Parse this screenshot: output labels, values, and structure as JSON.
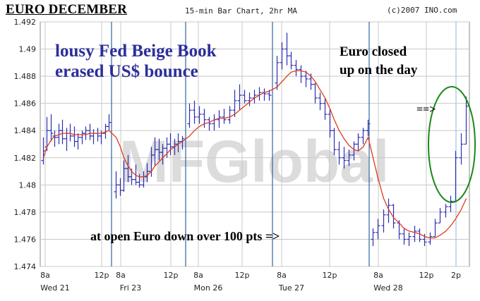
{
  "header": {
    "title": "EURO DECEMBER",
    "subtitle": "15-min Bar Chart, 2hr MA",
    "copyright": "(c)2007 INO.com"
  },
  "annotations": {
    "beige_book": [
      "lousy Fed Beige Book",
      "erased US$ bounce"
    ],
    "closed_up": [
      "Euro closed",
      "up on the day"
    ],
    "open_down": "at open Euro down over 100 pts =>",
    "arrow": "==>"
  },
  "watermark": "MFGlobal",
  "colors": {
    "bars": "#2d2fb0",
    "moving_average": "#e03a1a",
    "grid": "#c8c8c8",
    "day_separator": "#2f64a0",
    "circle": "#1a8a1a",
    "annotation_blue": "#2b2f9a"
  },
  "chart_data": {
    "type": "bar",
    "title": "EURO DECEMBER",
    "subtitle": "15-min Bar Chart, 2hr MA",
    "ylim": [
      1.474,
      1.492
    ],
    "y_ticks": [
      "1.474",
      "1.476",
      "1.478",
      "1.48",
      "1.482",
      "1.484",
      "1.486",
      "1.488",
      "1.49",
      "1.492"
    ],
    "x_ticks": [
      {
        "label": "8a",
        "day": "Wed 21"
      },
      {
        "label": "12p",
        "day": ""
      },
      {
        "label": "8a",
        "day": "Fri 23"
      },
      {
        "label": "12p",
        "day": ""
      },
      {
        "label": "8a",
        "day": "Mon 26"
      },
      {
        "label": "12p",
        "day": ""
      },
      {
        "label": "8a",
        "day": "Tue 27"
      },
      {
        "label": "12p",
        "day": ""
      },
      {
        "label": "8a",
        "day": "Wed 28"
      },
      {
        "label": "12p",
        "day": ""
      },
      {
        "label": "2p",
        "day": ""
      }
    ],
    "sessions": [
      {
        "day": "Wed 21",
        "bars": [
          [
            1.4835,
            1.4815,
            1.4818,
            1.4825
          ],
          [
            1.485,
            1.4825,
            1.4828,
            1.484
          ],
          [
            1.4852,
            1.4832,
            1.484,
            1.4838
          ],
          [
            1.484,
            1.4828,
            1.4836,
            1.4835
          ],
          [
            1.4845,
            1.483,
            1.4835,
            1.484
          ],
          [
            1.4848,
            1.483,
            1.484,
            1.4834
          ],
          [
            1.4842,
            1.4825,
            1.4834,
            1.4838
          ],
          [
            1.4845,
            1.4832,
            1.4838,
            1.4836
          ],
          [
            1.4843,
            1.4828,
            1.4836,
            1.4832
          ],
          [
            1.4838,
            1.4826,
            1.4832,
            1.4835
          ],
          [
            1.484,
            1.483,
            1.4835,
            1.4838
          ],
          [
            1.4843,
            1.4833,
            1.4838,
            1.484
          ],
          [
            1.4845,
            1.4833,
            1.484,
            1.4836
          ],
          [
            1.4841,
            1.483,
            1.4836,
            1.4838
          ],
          [
            1.4842,
            1.4832,
            1.4838,
            1.4836
          ],
          [
            1.484,
            1.483,
            1.4836,
            1.4838
          ],
          [
            1.4845,
            1.4834,
            1.4838,
            1.4843
          ],
          [
            1.4852,
            1.484,
            1.4843,
            1.4846
          ]
        ]
      },
      {
        "day": "Fri 23",
        "bars": [
          [
            1.481,
            1.479,
            1.4795,
            1.48
          ],
          [
            1.4805,
            1.4792,
            1.48,
            1.4796
          ],
          [
            1.4818,
            1.4795,
            1.4796,
            1.4812
          ],
          [
            1.4822,
            1.4802,
            1.4812,
            1.4806
          ],
          [
            1.4812,
            1.48,
            1.4806,
            1.4804
          ],
          [
            1.4815,
            1.48,
            1.4804,
            1.4802
          ],
          [
            1.4808,
            1.4798,
            1.4802,
            1.48
          ],
          [
            1.481,
            1.4798,
            1.48,
            1.4806
          ],
          [
            1.4816,
            1.4802,
            1.4806,
            1.481
          ],
          [
            1.4828,
            1.4806,
            1.481,
            1.4822
          ],
          [
            1.4835,
            1.4814,
            1.4822,
            1.4826
          ],
          [
            1.4834,
            1.4818,
            1.4826,
            1.4824
          ],
          [
            1.483,
            1.4815,
            1.4824,
            1.4827
          ],
          [
            1.4835,
            1.482,
            1.4827,
            1.483
          ],
          [
            1.4838,
            1.4822,
            1.483,
            1.4828
          ],
          [
            1.4834,
            1.4822,
            1.4828,
            1.483
          ],
          [
            1.4838,
            1.4824,
            1.483,
            1.4832
          ],
          [
            1.4836,
            1.4826,
            1.4832,
            1.4834
          ]
        ]
      },
      {
        "day": "Mon 26",
        "bars": [
          [
            1.486,
            1.4842,
            1.4845,
            1.4855
          ],
          [
            1.4862,
            1.4845,
            1.4855,
            1.485
          ],
          [
            1.4858,
            1.4845,
            1.485,
            1.4852
          ],
          [
            1.4856,
            1.4842,
            1.4852,
            1.4848
          ],
          [
            1.485,
            1.484,
            1.4848,
            1.4845
          ],
          [
            1.4852,
            1.484,
            1.4845,
            1.4848
          ],
          [
            1.4855,
            1.4842,
            1.4848,
            1.485
          ],
          [
            1.4856,
            1.4845,
            1.485,
            1.4848
          ],
          [
            1.4858,
            1.4845,
            1.4848,
            1.4855
          ],
          [
            1.487,
            1.485,
            1.4855,
            1.4862
          ],
          [
            1.4874,
            1.4855,
            1.4862,
            1.4866
          ],
          [
            1.487,
            1.486,
            1.4866,
            1.4862
          ],
          [
            1.4868,
            1.4858,
            1.4862,
            1.4864
          ],
          [
            1.487,
            1.486,
            1.4864,
            1.4866
          ],
          [
            1.4872,
            1.4862,
            1.4866,
            1.4868
          ],
          [
            1.4871,
            1.4862,
            1.4868,
            1.4867
          ],
          [
            1.487,
            1.4862,
            1.4867,
            1.4866
          ]
        ]
      },
      {
        "day": "Tue 27",
        "bars": [
          [
            1.4895,
            1.487,
            1.4875,
            1.489
          ],
          [
            1.4905,
            1.4885,
            1.489,
            1.49
          ],
          [
            1.4912,
            1.4888,
            1.49,
            1.4895
          ],
          [
            1.4898,
            1.4885,
            1.4895,
            1.4888
          ],
          [
            1.4892,
            1.488,
            1.4888,
            1.4885
          ],
          [
            1.4888,
            1.4875,
            1.4885,
            1.488
          ],
          [
            1.4884,
            1.4872,
            1.488,
            1.4878
          ],
          [
            1.4882,
            1.487,
            1.4878,
            1.4874
          ],
          [
            1.4875,
            1.486,
            1.4874,
            1.4864
          ],
          [
            1.4868,
            1.4855,
            1.4864,
            1.486
          ],
          [
            1.4864,
            1.4848,
            1.486,
            1.4852
          ],
          [
            1.4856,
            1.4835,
            1.4852,
            1.484
          ],
          [
            1.4842,
            1.4822,
            1.484,
            1.4826
          ],
          [
            1.4832,
            1.4815,
            1.4826,
            1.482
          ],
          [
            1.4828,
            1.4812,
            1.482,
            1.4818
          ],
          [
            1.4826,
            1.4814,
            1.4818,
            1.4822
          ],
          [
            1.4832,
            1.4818,
            1.4822,
            1.483
          ],
          [
            1.4838,
            1.4825,
            1.483,
            1.4835
          ],
          [
            1.4842,
            1.483,
            1.4835,
            1.484
          ],
          [
            1.4848,
            1.4836,
            1.484,
            1.4845
          ]
        ]
      },
      {
        "day": "Wed 28",
        "bars": [
          [
            1.4768,
            1.4755,
            1.476,
            1.4765
          ],
          [
            1.4775,
            1.476,
            1.4765,
            1.477
          ],
          [
            1.4782,
            1.4765,
            1.477,
            1.4778
          ],
          [
            1.479,
            1.4772,
            1.4778,
            1.4785
          ],
          [
            1.4786,
            1.4768,
            1.4785,
            1.4772
          ],
          [
            1.4774,
            1.476,
            1.4772,
            1.4764
          ],
          [
            1.4768,
            1.4756,
            1.4764,
            1.476
          ],
          [
            1.4765,
            1.4755,
            1.476,
            1.4762
          ],
          [
            1.477,
            1.4758,
            1.4762,
            1.4766
          ],
          [
            1.4768,
            1.4758,
            1.4766,
            1.476
          ],
          [
            1.4764,
            1.4755,
            1.476,
            1.4758
          ],
          [
            1.4765,
            1.4756,
            1.4758,
            1.4762
          ],
          [
            1.4775,
            1.4762,
            1.4762,
            1.4772
          ],
          [
            1.4783,
            1.4772,
            1.4772,
            1.478
          ],
          [
            1.4786,
            1.4776,
            1.478,
            1.4784
          ],
          [
            1.4792,
            1.478,
            1.4784,
            1.4788
          ],
          [
            1.4825,
            1.4788,
            1.4788,
            1.482
          ],
          [
            1.4838,
            1.4815,
            1.482,
            1.483
          ],
          [
            1.4865,
            1.483,
            1.483,
            1.4858
          ]
        ]
      }
    ],
    "moving_average": [
      1.482,
      1.4828,
      1.4833,
      1.4836,
      1.4837,
      1.4838,
      1.4838,
      1.4838,
      1.4837,
      1.4837,
      1.4837,
      1.4837,
      1.4838,
      1.4838,
      1.4838,
      1.4838,
      1.4839,
      1.484,
      1.4835,
      1.4828,
      1.482,
      1.4814,
      1.481,
      1.4807,
      1.4806,
      1.4806,
      1.4807,
      1.481,
      1.4814,
      1.4817,
      1.482,
      1.4823,
      1.4826,
      1.4828,
      1.483,
      1.4832,
      1.4836,
      1.484,
      1.4843,
      1.4845,
      1.4846,
      1.4848,
      1.4849,
      1.4849,
      1.485,
      1.4852,
      1.4855,
      1.4858,
      1.4861,
      1.4864,
      1.4866,
      1.4868,
      1.4869,
      1.4872,
      1.4876,
      1.488,
      1.4883,
      1.4884,
      1.4884,
      1.4883,
      1.488,
      1.4876,
      1.487,
      1.4864,
      1.4856,
      1.4848,
      1.484,
      1.4834,
      1.4829,
      1.4826,
      1.4825,
      1.4828,
      1.4835,
      1.482,
      1.4805,
      1.479,
      1.4782,
      1.4776,
      1.4772,
      1.4768,
      1.4766,
      1.4765,
      1.4764,
      1.4762,
      1.4761,
      1.4761,
      1.4763,
      1.4766,
      1.477,
      1.4775,
      1.4782,
      1.479
    ]
  }
}
